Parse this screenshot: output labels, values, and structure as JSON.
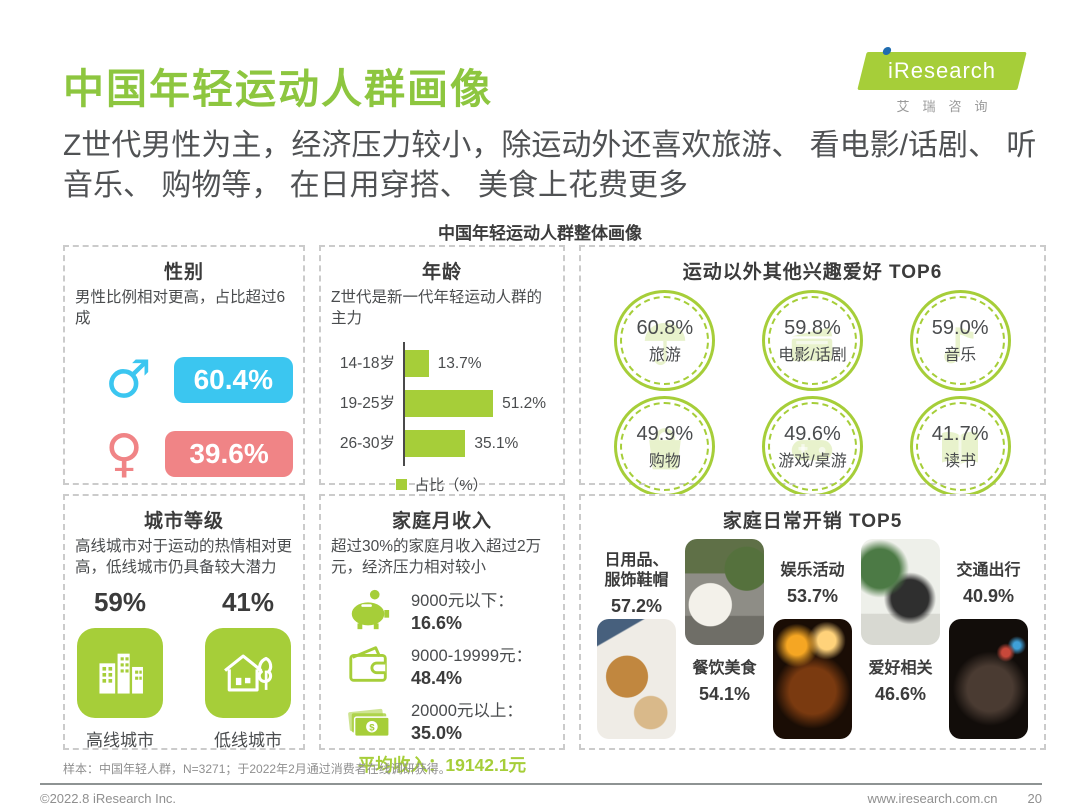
{
  "colors": {
    "green": "#a6ce39",
    "title_green": "#8dc63f",
    "light_green": "#e4f0c4",
    "male_blue": "#3bc6f0",
    "female_pink": "#f08486"
  },
  "header": {
    "title": "中国年轻运动人群画像",
    "subtitle": "Z世代男性为主，经济压力较小，除运动外还喜欢旅游、 看电影/话剧、 听音乐、 购物等， 在日用穿搭、 美食上花费更多",
    "section_title": "中国年轻运动人群整体画像",
    "logo_text": "iResearch",
    "logo_cn": "艾瑞咨询"
  },
  "gender": {
    "title": "性别",
    "desc": "男性比例相对更高，占比超过6成",
    "male_symbol": "♂",
    "female_symbol": "♀",
    "male_value": "60.4%",
    "female_value": "39.6%"
  },
  "age": {
    "title": "年龄",
    "desc": "Z世代是新一代年轻运动人群的主力",
    "chart": {
      "categories": [
        "14-18岁",
        "19-25岁",
        "26-30岁"
      ],
      "values": [
        13.7,
        51.2,
        35.1
      ],
      "labels": [
        "13.7%",
        "51.2%",
        "35.1%"
      ],
      "legend": "占比（%）"
    }
  },
  "interests": {
    "title": "运动以外其他兴趣爱好 TOP6",
    "items": [
      {
        "value": "60.8%",
        "label": "旅游",
        "icon": "travel-umbrella-icon"
      },
      {
        "value": "59.8%",
        "label": "电影/话剧",
        "icon": "movie-clapper-icon"
      },
      {
        "value": "59.0%",
        "label": "音乐",
        "icon": "music-note-icon"
      },
      {
        "value": "49.9%",
        "label": "购物",
        "icon": "shopping-bag-icon"
      },
      {
        "value": "49.6%",
        "label": "游戏/桌游",
        "icon": "game-controller-icon"
      },
      {
        "value": "41.7%",
        "label": "读书",
        "icon": "open-book-icon"
      }
    ]
  },
  "city": {
    "title": "城市等级",
    "desc": "高线城市对于运动的热情相对更高，低线城市仍具备较大潜力",
    "items": [
      {
        "value": "59%",
        "label": "高线城市",
        "icon": "buildings-icon"
      },
      {
        "value": "41%",
        "label": "低线城市",
        "icon": "house-tree-icon"
      }
    ]
  },
  "income": {
    "title": "家庭月收入",
    "desc": "超过30%的家庭月收入超过2万元，经济压力相对较小",
    "items": [
      {
        "label": "9000元以下：",
        "value": "16.6%",
        "icon": "piggy-bank-icon"
      },
      {
        "label": "9000-19999元：",
        "value": "48.4%",
        "icon": "wallet-icon"
      },
      {
        "label": "20000元以上：",
        "value": "35.0%",
        "icon": "banknotes-icon"
      }
    ],
    "average": "平均收入：19142.1元"
  },
  "expenses": {
    "title": "家庭日常开销 TOP5",
    "items": [
      {
        "label": "日用品、\n服饰鞋帽",
        "value": "57.2%",
        "photo": "fashion-accessories"
      },
      {
        "label": "餐饮美食",
        "value": "54.1%",
        "photo": "noodle-bowl"
      },
      {
        "label": "娱乐活动",
        "value": "53.7%",
        "photo": "concert-lights"
      },
      {
        "label": "爱好相关",
        "value": "46.6%",
        "photo": "plants-hobby"
      },
      {
        "label": "交通出行",
        "value": "40.9%",
        "photo": "night-driving"
      }
    ]
  },
  "footer": {
    "sample_note": "样本：中国年轻人群，N=3271；于2022年2月通过消费者在线调研获得。",
    "copyright": "©2022.8 iResearch Inc.",
    "website": "www.iresearch.com.cn",
    "page_number": "20"
  },
  "chart_data": [
    {
      "type": "bar",
      "title": "性别",
      "categories": [
        "男",
        "女"
      ],
      "values": [
        60.4,
        39.6
      ],
      "unit": "%"
    },
    {
      "type": "bar",
      "title": "年龄",
      "orientation": "horizontal",
      "categories": [
        "14-18岁",
        "19-25岁",
        "26-30岁"
      ],
      "values": [
        13.7,
        51.2,
        35.1
      ],
      "legend": [
        "占比（%）"
      ],
      "unit": "%"
    },
    {
      "type": "bar",
      "title": "运动以外其他兴趣爱好 TOP6",
      "categories": [
        "旅游",
        "电影/话剧",
        "音乐",
        "购物",
        "游戏/桌游",
        "读书"
      ],
      "values": [
        60.8,
        59.8,
        59.0,
        49.9,
        49.6,
        41.7
      ],
      "unit": "%"
    },
    {
      "type": "bar",
      "title": "城市等级",
      "categories": [
        "高线城市",
        "低线城市"
      ],
      "values": [
        59,
        41
      ],
      "unit": "%"
    },
    {
      "type": "bar",
      "title": "家庭月收入",
      "categories": [
        "9000元以下",
        "9000-19999元",
        "20000元以上"
      ],
      "values": [
        16.6,
        48.4,
        35.0
      ],
      "annotation": "平均收入：19142.1元",
      "unit": "%"
    },
    {
      "type": "bar",
      "title": "家庭日常开销 TOP5",
      "categories": [
        "日用品、服饰鞋帽",
        "餐饮美食",
        "娱乐活动",
        "爱好相关",
        "交通出行"
      ],
      "values": [
        57.2,
        54.1,
        53.7,
        46.6,
        40.9
      ],
      "unit": "%"
    }
  ]
}
